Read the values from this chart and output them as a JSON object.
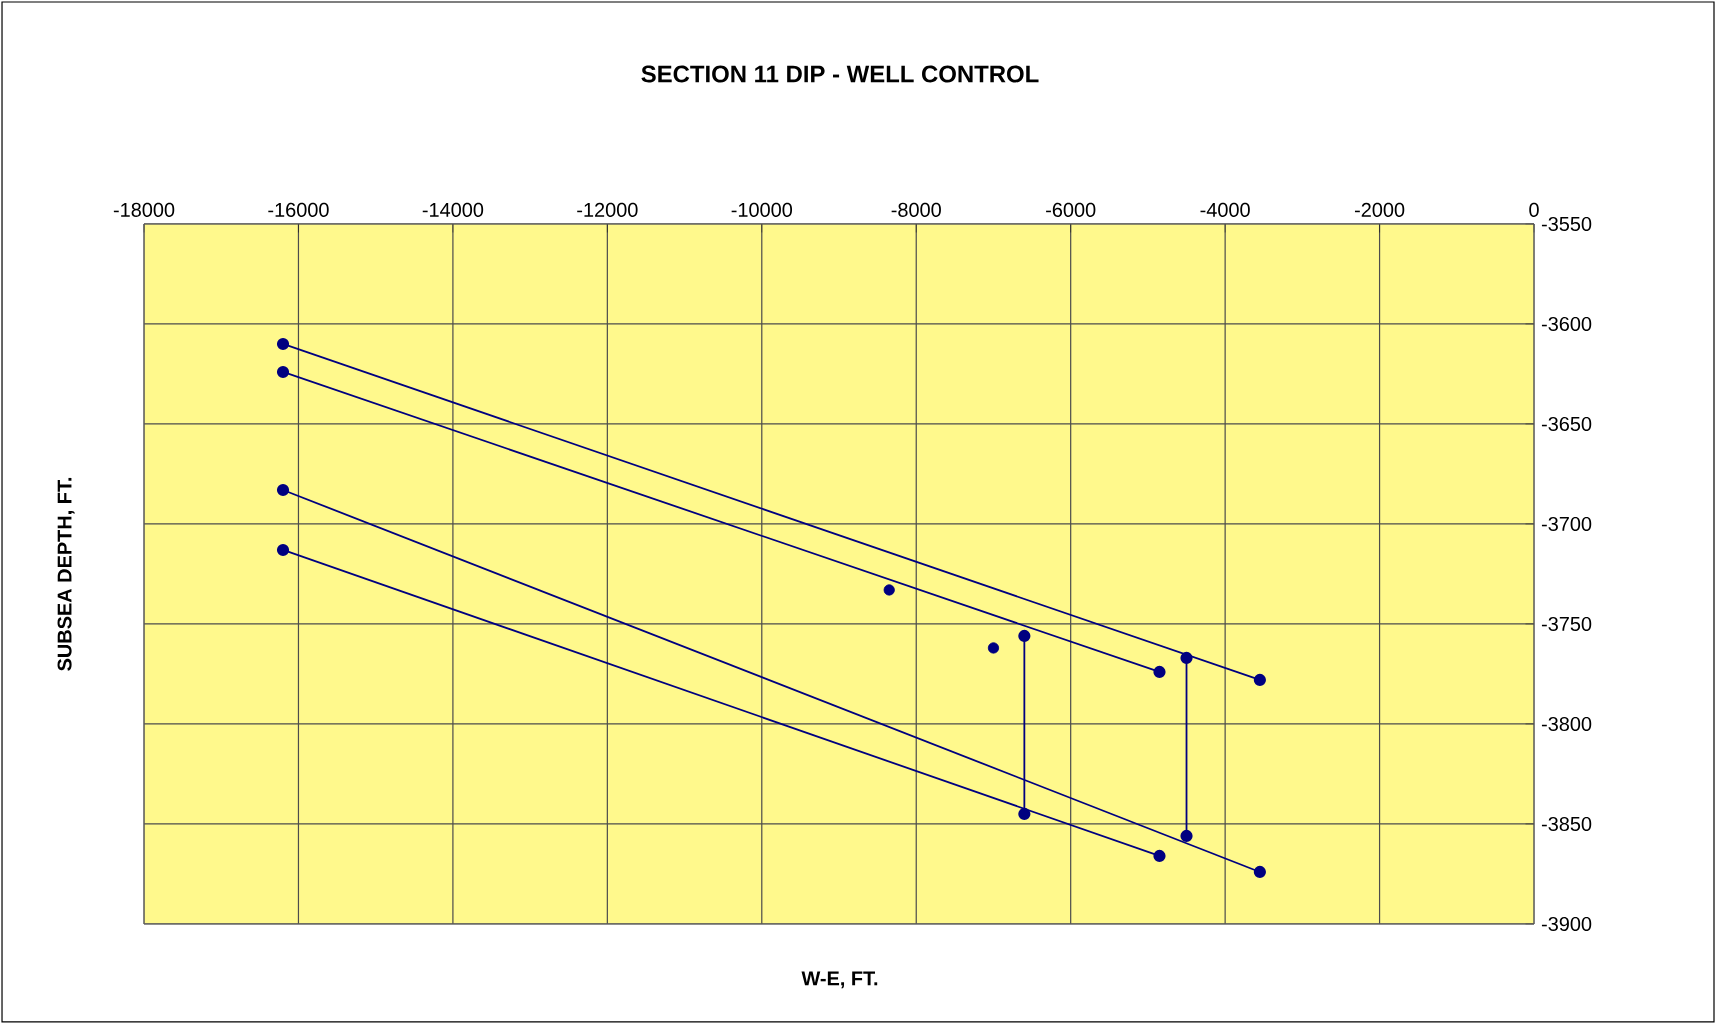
{
  "chart_data": {
    "type": "line",
    "title": "SECTION 11 DIP - WELL CONTROL",
    "xlabel": "W-E, FT.",
    "ylabel": "SUBSEA DEPTH, FT.",
    "xlim": [
      -18000,
      0
    ],
    "ylim": [
      -3900,
      -3550
    ],
    "xticks": [
      -18000,
      -16000,
      -14000,
      -12000,
      -10000,
      -8000,
      -6000,
      -4000,
      -2000,
      0
    ],
    "yticks": [
      -3900,
      -3850,
      -3800,
      -3750,
      -3700,
      -3650,
      -3600,
      -3550
    ],
    "grid": true,
    "marker": "circle",
    "line_style": "solid",
    "series": [
      {
        "color": "#000080",
        "x": [
          -16200,
          -3550
        ],
        "values": [
          -3610,
          -3778
        ]
      },
      {
        "color": "#000080",
        "x": [
          -16200,
          -4850
        ],
        "values": [
          -3624,
          -3774
        ]
      },
      {
        "color": "#000080",
        "x": [
          -16200,
          -3550
        ],
        "values": [
          -3683,
          -3874
        ]
      },
      {
        "color": "#000080",
        "x": [
          -16200,
          -4850
        ],
        "values": [
          -3713,
          -3866
        ]
      },
      {
        "color": "#000080",
        "x": [
          -6600,
          -6600
        ],
        "values": [
          -3756,
          -3845
        ]
      },
      {
        "color": "#000080",
        "x": [
          -4500,
          -4500
        ],
        "values": [
          -3767,
          -3856
        ]
      },
      {
        "type": "scatter",
        "color": "#000080",
        "x": [
          -8350,
          -7000
        ],
        "values": [
          -3733,
          -3762
        ]
      }
    ]
  }
}
